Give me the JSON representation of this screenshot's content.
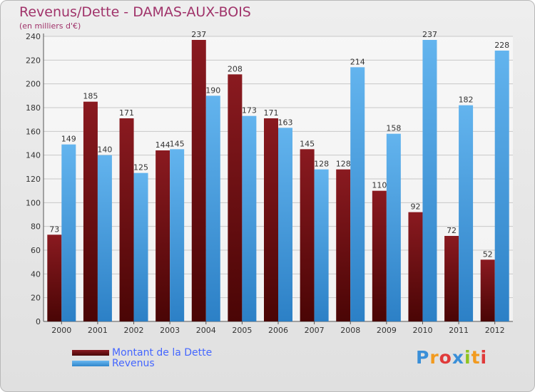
{
  "chart_data": {
    "type": "bar",
    "title": "Revenus/Dette - DAMAS-AUX-BOIS",
    "subtitle": "(en milliers d'€)",
    "categories": [
      "2000",
      "2001",
      "2002",
      "2003",
      "2004",
      "2005",
      "2006",
      "2007",
      "2008",
      "2009",
      "2010",
      "2011",
      "2012"
    ],
    "series": [
      {
        "name": "Montant de la Dette",
        "color": "#6b0f14",
        "values": [
          73,
          185,
          171,
          144,
          237,
          208,
          171,
          145,
          128,
          110,
          92,
          72,
          52
        ]
      },
      {
        "name": "Revenus",
        "color": "#4aa3e6",
        "values": [
          149,
          140,
          125,
          145,
          190,
          173,
          163,
          128,
          214,
          158,
          237,
          182,
          228
        ]
      }
    ],
    "ylim": [
      0,
      240
    ],
    "yticks": [
      0,
      20,
      40,
      60,
      80,
      100,
      120,
      140,
      160,
      180,
      200,
      220,
      240
    ],
    "grid": true,
    "legend_position": "bottom-left"
  },
  "logo": {
    "letters": [
      "P",
      "r",
      "o",
      "x",
      "i",
      "t",
      "i"
    ],
    "colors": [
      "#3a8fd8",
      "#f29a1f",
      "#e03a3a",
      "#3a8fd8",
      "#8fc31f",
      "#f29a1f",
      "#e03a3a"
    ]
  }
}
